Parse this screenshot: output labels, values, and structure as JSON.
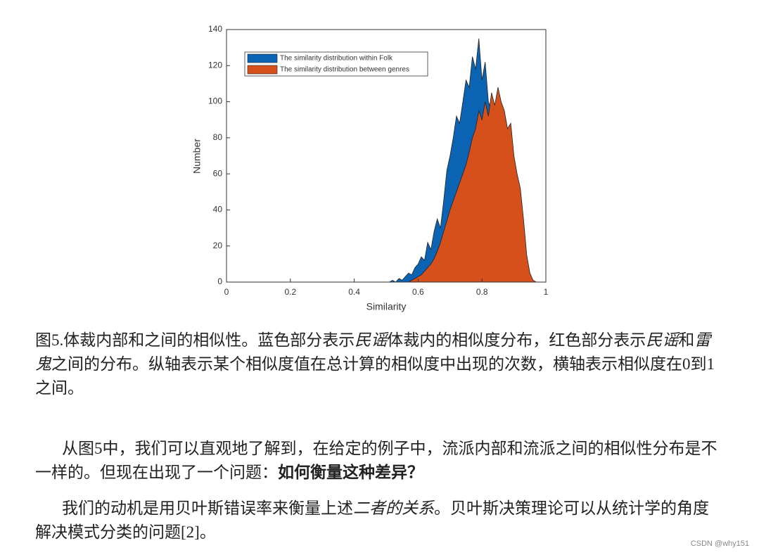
{
  "chart_data": {
    "type": "area",
    "xlabel": "Similarity",
    "ylabel": "Number",
    "x": [
      0.5,
      0.51,
      0.52,
      0.53,
      0.54,
      0.55,
      0.56,
      0.57,
      0.58,
      0.59,
      0.6,
      0.61,
      0.62,
      0.63,
      0.64,
      0.65,
      0.66,
      0.67,
      0.68,
      0.69,
      0.7,
      0.71,
      0.72,
      0.73,
      0.74,
      0.75,
      0.76,
      0.77,
      0.78,
      0.79,
      0.8,
      0.81,
      0.82,
      0.83,
      0.84,
      0.85,
      0.86,
      0.87,
      0.88,
      0.89,
      0.9,
      0.91,
      0.92,
      0.93,
      0.94,
      0.95,
      0.96,
      0.97
    ],
    "series": [
      {
        "name": "The similarity distribution within Folk",
        "color": "#0b63b3",
        "values": [
          0,
          0,
          1,
          0,
          2,
          1,
          3,
          5,
          4,
          8,
          10,
          14,
          12,
          22,
          18,
          28,
          35,
          30,
          45,
          62,
          70,
          80,
          92,
          88,
          100,
          112,
          108,
          125,
          118,
          135,
          112,
          122,
          100,
          95,
          80,
          88,
          75,
          60,
          45,
          32,
          20,
          12,
          6,
          3,
          1,
          0,
          0,
          0
        ]
      },
      {
        "name": "The similarity distribution between genres",
        "color": "#d6501b",
        "values": [
          0,
          0,
          0,
          0,
          0,
          0,
          0,
          0,
          1,
          2,
          3,
          4,
          6,
          8,
          10,
          13,
          17,
          22,
          28,
          34,
          40,
          45,
          50,
          55,
          60,
          65,
          72,
          80,
          85,
          95,
          90,
          100,
          92,
          105,
          98,
          108,
          100,
          95,
          85,
          88,
          70,
          60,
          52,
          35,
          15,
          5,
          1,
          0
        ]
      }
    ],
    "xlim": [
      0,
      1
    ],
    "xticks": [
      0,
      0.2,
      0.4,
      0.6,
      0.8,
      1
    ],
    "ylim": [
      0,
      140
    ],
    "yticks": [
      0,
      20,
      40,
      60,
      80,
      100,
      120,
      140
    ],
    "grid": false,
    "legend": "upper left"
  },
  "caption": {
    "runs": [
      {
        "text": "图5.体裁内部和之间的相似性。蓝色部分表示"
      },
      {
        "text": "民谣",
        "italic": true
      },
      {
        "text": "体裁内的相似度分布，红色部分表示"
      },
      {
        "text": "民谣",
        "italic": true
      },
      {
        "text": "和"
      },
      {
        "text": "雷鬼",
        "italic": true
      },
      {
        "text": "之间的分布。纵轴表示某个相似度值在总计算的相似度中出现的次数，横轴表示相似度在0到1之间。"
      }
    ]
  },
  "paragraphs": [
    {
      "runs": [
        {
          "text": "从图5中，我们可以直观地了解到，在给定的例子中，流派内部和流派之间的相似性分布是不一样的。但现在出现了一个问题："
        },
        {
          "text": "如何衡量这种差异？",
          "bold": true
        }
      ]
    },
    {
      "runs": [
        {
          "text": "我们的动机是用贝叶斯错误率来衡量上述"
        },
        {
          "text": "二者的关系",
          "italic": true
        },
        {
          "text": "。贝叶斯决策理论可以从统计学的角度解决模式分类的问题[2]。"
        }
      ]
    }
  ],
  "footer": "CSDN @why151"
}
